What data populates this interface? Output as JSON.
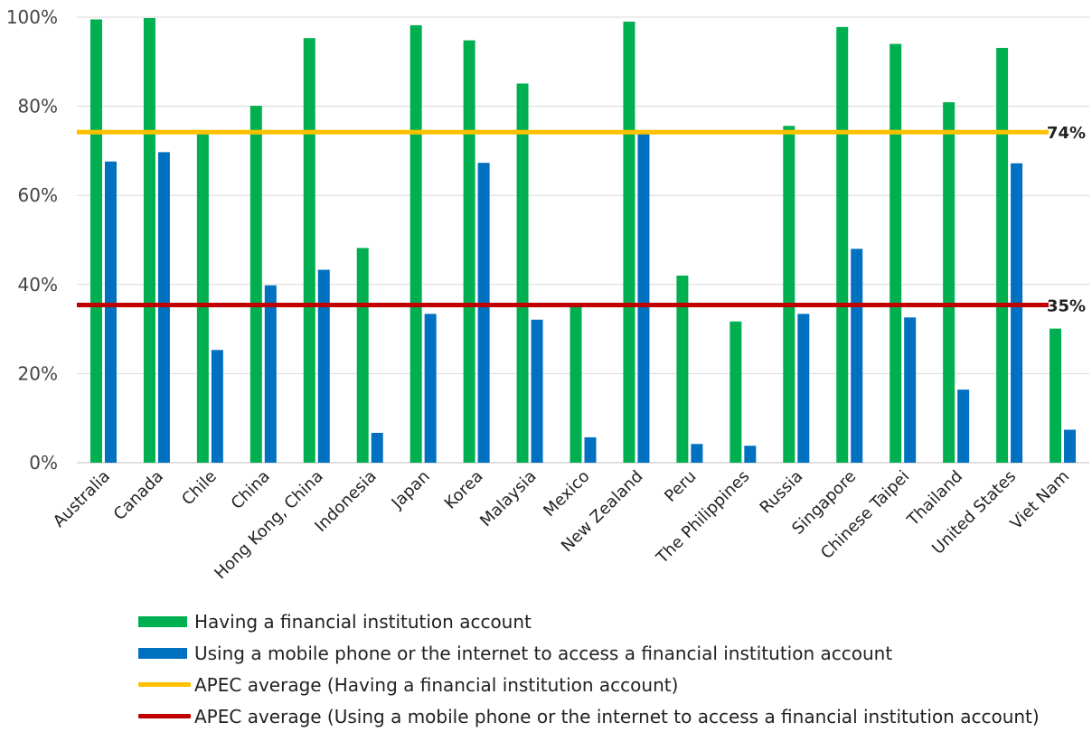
{
  "chart_data": {
    "type": "bar",
    "categories": [
      "Australia",
      "Canada",
      "Chile",
      "China",
      "Hong Kong, China",
      "Indonesia",
      "Japan",
      "Korea",
      "Malaysia",
      "Mexico",
      "New Zealand",
      "Peru",
      "The Philippines",
      "Russia",
      "Singapore",
      "Chinese Taipei",
      "Thailand",
      "United States",
      "Viet Nam"
    ],
    "series": [
      {
        "name": "Having a financial institution account",
        "color": "#00b050",
        "values": [
          99.5,
          99.8,
          74.0,
          80.1,
          95.3,
          48.2,
          98.2,
          94.8,
          85.1,
          35.4,
          99.0,
          42.0,
          31.7,
          75.6,
          97.8,
          94.0,
          80.9,
          93.1,
          30.1
        ]
      },
      {
        "name": "Using a mobile phone or the internet to access a financial institution account",
        "color": "#0070c0",
        "values": [
          67.6,
          69.7,
          25.3,
          39.8,
          43.3,
          6.7,
          33.4,
          67.3,
          32.1,
          5.7,
          74.0,
          4.2,
          3.8,
          33.4,
          48.0,
          32.6,
          16.4,
          67.2,
          7.4
        ]
      }
    ],
    "reference_lines": [
      {
        "name": "APEC average (Having a financial institution account)",
        "value": 74.2,
        "label": "74%",
        "color": "#ffc000"
      },
      {
        "name": "APEC average (Using a mobile phone or the internet to access a financial institution account)",
        "value": 35.4,
        "label": "35%",
        "color": "#c00000"
      }
    ],
    "y_ticks": [
      "0%",
      "20%",
      "40%",
      "60%",
      "80%",
      "100%"
    ],
    "y_tick_values": [
      0,
      20,
      40,
      60,
      80,
      100
    ],
    "ylim": [
      0,
      100
    ],
    "grid": true,
    "legend_position": "bottom",
    "title": "",
    "xlabel": "",
    "ylabel": ""
  }
}
